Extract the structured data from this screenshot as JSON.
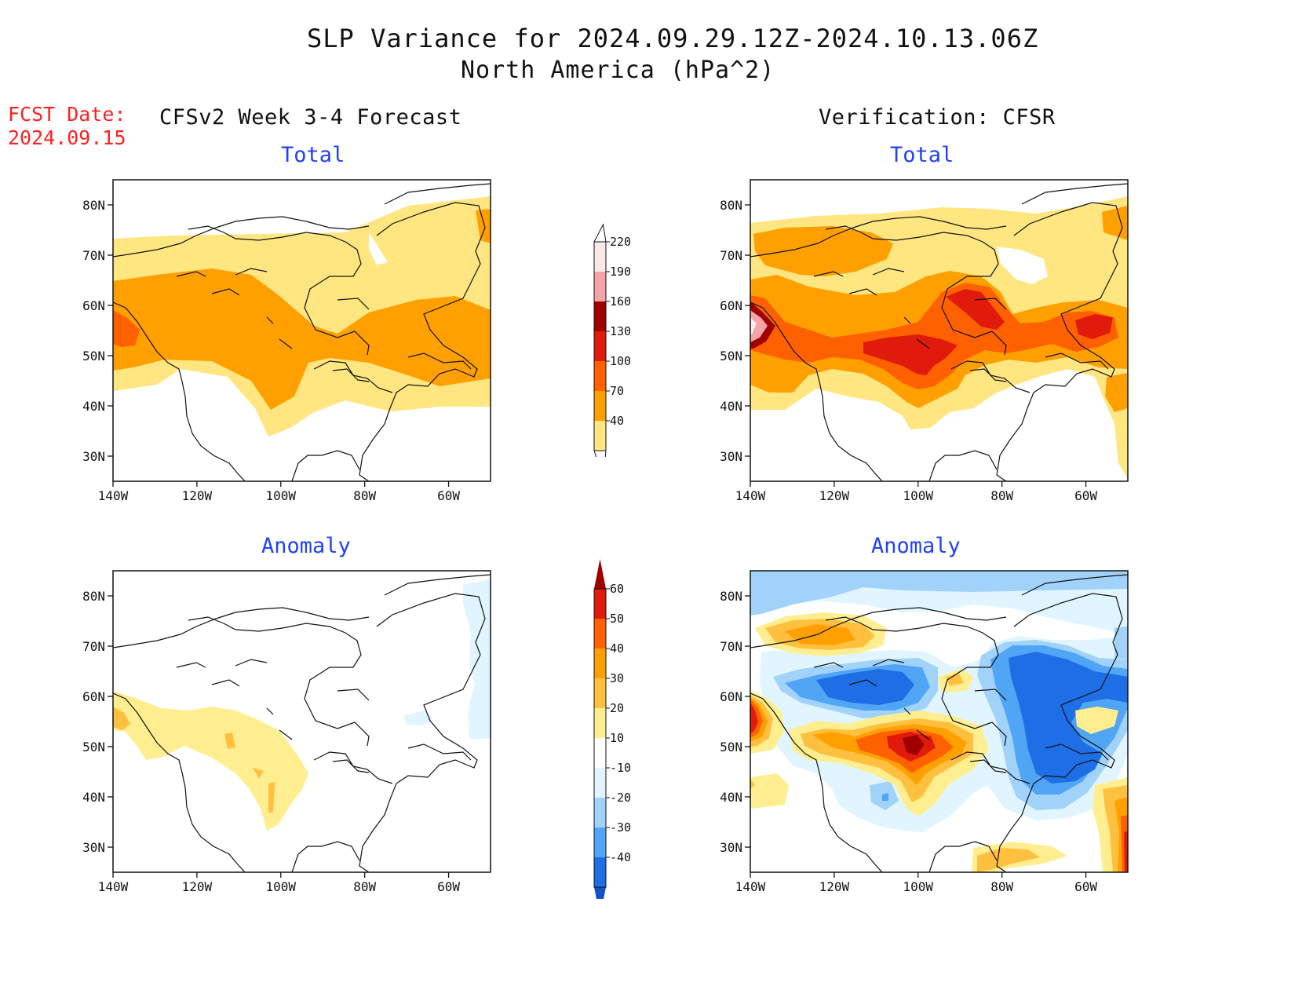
{
  "header": {
    "title": "SLP Variance for 2024.09.29.12Z-2024.10.13.06Z",
    "subtitle": "North America (hPa^2)",
    "fcst_label": "FCST Date:",
    "fcst_date": "2024.09.15"
  },
  "columns": {
    "left": "CFSv2 Week 3-4 Forecast",
    "right": "Verification: CFSR"
  },
  "panels": [
    {
      "id": "forecast-total",
      "title": "Total"
    },
    {
      "id": "verification-total",
      "title": "Total"
    },
    {
      "id": "forecast-anomaly",
      "title": "Anomaly"
    },
    {
      "id": "verification-anomaly",
      "title": "Anomaly"
    }
  ],
  "axes": {
    "lat_ticks": [
      "80N",
      "70N",
      "60N",
      "50N",
      "40N",
      "30N"
    ],
    "lat_values": [
      80,
      70,
      60,
      50,
      40,
      30
    ],
    "lon_ticks": [
      "140W",
      "120W",
      "100W",
      "80W",
      "60W"
    ],
    "lon_values": [
      -140,
      -120,
      -100,
      -80,
      -60
    ],
    "lon_range": [
      -140,
      -50
    ],
    "lat_range": [
      25,
      85
    ]
  },
  "colorbars": {
    "total": {
      "levels": [
        "220",
        "190",
        "160",
        "130",
        "100",
        "70",
        "40"
      ],
      "colors": [
        "#fde8e8",
        "#f4a3a8",
        "#a00000",
        "#e01b0b",
        "#ff6000",
        "#ffa000",
        "#ffe680"
      ]
    },
    "anomaly": {
      "levels": [
        "60",
        "50",
        "40",
        "30",
        "20",
        "10",
        "-10",
        "-20",
        "-30",
        "-40"
      ],
      "colors": [
        "#a00000",
        "#e01b0b",
        "#ff6000",
        "#ffa000",
        "#ffc040",
        "#ffee90",
        "#ffffff",
        "#e0f5ff",
        "#a0d2fa",
        "#50a5f5",
        "#1e6ee6",
        "#1450c8"
      ]
    }
  },
  "palette": {
    "t40": "#ffe680",
    "t70": "#ffa000",
    "t100": "#ff6000",
    "t130": "#e01b0b",
    "t160": "#a00000",
    "t190": "#f4a3a8",
    "t220": "#fde8e8",
    "a10": "#ffee90",
    "a20": "#ffc040",
    "a30": "#ffa000",
    "a40": "#ff6000",
    "a50": "#e01b0b",
    "a60": "#a00000",
    "n10": "#e0f5ff",
    "n20": "#a0d2fa",
    "n30": "#50a5f5",
    "n40": "#1e6ee6"
  }
}
